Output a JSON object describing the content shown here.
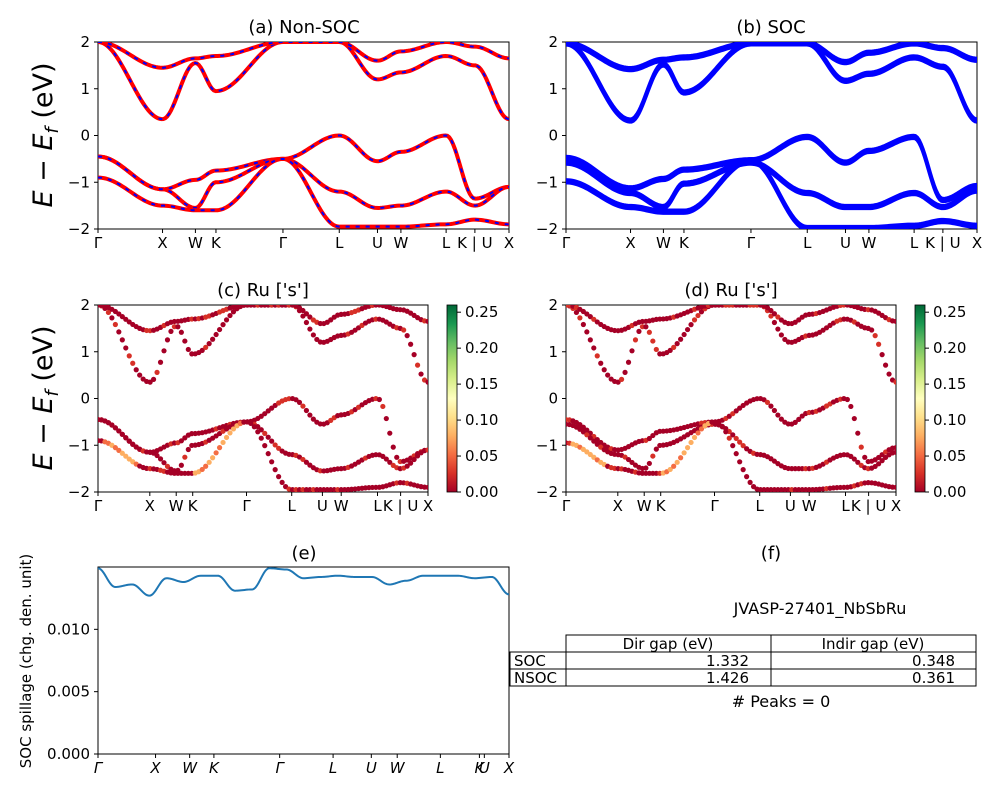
{
  "panels": {
    "a": {
      "title": "(a) Non-SOC"
    },
    "b": {
      "title": "(b) SOC"
    },
    "c": {
      "title": "(c)  Ru ['s']"
    },
    "d": {
      "title": "(d) Ru ['s']"
    },
    "e": {
      "title": "(e)"
    },
    "f": {
      "title": "(f)"
    }
  },
  "axes": {
    "ylabel_energy": "E − E_f (eV)",
    "ylabel_spillage": "SOC spillage (chg. den. unit)",
    "band_yticks": [
      "2",
      "1",
      "0",
      "−1",
      "−2"
    ],
    "band_ylim": [
      -2,
      2
    ],
    "kpath_labels": [
      "Γ",
      "X",
      "W",
      "K",
      "Γ",
      "L",
      "U",
      "W",
      "L",
      "K | U",
      "X"
    ],
    "kpath_labels_e": [
      "Γ",
      "X",
      "W",
      "K",
      "Γ",
      "L",
      "U",
      "W",
      "L",
      "K",
      "U",
      "X"
    ],
    "colorbar_ticks": [
      "0.25",
      "0.20",
      "0.15",
      "0.10",
      "0.05",
      "0.00"
    ],
    "spill_yticks": [
      "0.010",
      "0.005",
      "0.000"
    ]
  },
  "table": {
    "material": "JVASP-27401_NbSbRu",
    "headers": [
      "",
      "Dir gap (eV)",
      "Indir gap (eV)"
    ],
    "rows": [
      {
        "label": "SOC",
        "dir": "1.332",
        "indir": "0.348"
      },
      {
        "label": "NSOC",
        "dir": "1.426",
        "indir": "0.361"
      }
    ],
    "peaks": "# Peaks = 0"
  },
  "colors": {
    "nsoc_line": "#ff0000",
    "nsoc_dash": "#0000ff",
    "soc_line": "#0000ff",
    "spillage_line": "#1f77b4",
    "colormap": [
      "#a50026",
      "#d73027",
      "#f46d43",
      "#fdae61",
      "#fee08b",
      "#ffffbf",
      "#d9ef8b",
      "#a6d96a",
      "#66bd63",
      "#1a9850",
      "#006837"
    ]
  },
  "chart_data": [
    {
      "type": "line",
      "title": "(a) Non-SOC",
      "ylabel": "E − E_f (eV)",
      "x_ticks": [
        "Γ",
        "X",
        "W",
        "K",
        "Γ",
        "L",
        "U",
        "W",
        "L",
        "K | U",
        "X"
      ],
      "ylim": [
        -2,
        2
      ],
      "series": [
        {
          "values": [
            -0.45,
            -1.15,
            -0.95,
            -0.75,
            -0.5,
            0.0,
            -0.55,
            -0.35,
            0.0,
            -1.35,
            -1.1
          ]
        },
        {
          "values": [
            -0.45,
            -1.15,
            -1.55,
            -1.0,
            -0.5,
            -1.2,
            -1.55,
            -1.5,
            -1.2,
            -1.5,
            -1.1
          ]
        },
        {
          "values": [
            -0.9,
            -1.5,
            -1.6,
            -1.6,
            -0.5,
            -1.95,
            -1.95,
            -1.95,
            -1.9,
            -1.8,
            -1.9
          ]
        },
        {
          "values": [
            2.0,
            0.35,
            1.55,
            0.95,
            2.0,
            2.0,
            1.2,
            1.35,
            1.7,
            1.5,
            0.35
          ]
        },
        {
          "values": [
            2.0,
            1.45,
            1.65,
            1.7,
            2.0,
            2.0,
            1.6,
            1.8,
            2.0,
            1.9,
            1.65
          ]
        }
      ]
    },
    {
      "type": "line",
      "title": "(b) SOC",
      "x_ticks": [
        "Γ",
        "X",
        "W",
        "K",
        "Γ",
        "L",
        "U",
        "W",
        "L",
        "K | U",
        "X"
      ],
      "ylim": [
        -2,
        2
      ],
      "series": [
        {
          "values": [
            -0.45,
            -1.1,
            -0.9,
            -0.7,
            -0.5,
            0.0,
            -0.55,
            -0.3,
            0.0,
            -1.35,
            -1.05
          ]
        },
        {
          "values": [
            -0.55,
            -1.2,
            -1.5,
            -1.0,
            -0.55,
            -1.2,
            -1.5,
            -1.5,
            -1.2,
            -1.5,
            -1.15
          ]
        },
        {
          "values": [
            -0.95,
            -1.5,
            -1.6,
            -1.6,
            -0.5,
            -1.95,
            -1.95,
            -1.95,
            -1.9,
            -1.8,
            -1.9
          ]
        },
        {
          "values": [
            2.0,
            0.35,
            1.55,
            0.95,
            2.0,
            2.0,
            1.2,
            1.35,
            1.7,
            1.5,
            0.35
          ]
        },
        {
          "values": [
            2.0,
            1.45,
            1.65,
            1.7,
            2.0,
            2.0,
            1.6,
            1.8,
            2.0,
            1.9,
            1.65
          ]
        }
      ]
    },
    {
      "type": "scatter",
      "title": "(c)  Ru ['s']",
      "ylabel": "E − E_f (eV)",
      "colorbar_range": [
        0.0,
        0.26
      ],
      "ylim": [
        -2,
        2
      ]
    },
    {
      "type": "scatter",
      "title": "(d) Ru ['s']",
      "colorbar_range": [
        0.0,
        0.26
      ],
      "ylim": [
        -2,
        2
      ]
    },
    {
      "type": "line",
      "title": "(e)",
      "ylabel": "SOC spillage (chg. den. unit)",
      "x_ticks": [
        "Γ",
        "X",
        "W",
        "K",
        "Γ",
        "L",
        "U",
        "W",
        "L",
        "K",
        "U",
        "X"
      ],
      "ylim": [
        0.0,
        0.015
      ],
      "y_ticks": [
        0.0,
        0.005,
        0.01
      ],
      "series": [
        {
          "values": [
            0.0149,
            0.0134,
            0.0136,
            0.0127,
            0.0141,
            0.0138,
            0.0143,
            0.0143,
            0.0131,
            0.0132,
            0.0149,
            0.0148,
            0.0141,
            0.0142,
            0.0143,
            0.0142,
            0.0142,
            0.0136,
            0.0139,
            0.0143,
            0.0143,
            0.0143,
            0.0141,
            0.0142,
            0.0128
          ]
        }
      ]
    },
    {
      "type": "table",
      "title": "(f)",
      "material": "JVASP-27401_NbSbRu",
      "columns": [
        "Dir gap (eV)",
        "Indir gap (eV)"
      ],
      "rows": [
        [
          "SOC",
          1.332,
          0.348
        ],
        [
          "NSOC",
          1.426,
          0.361
        ]
      ],
      "peaks": 0
    }
  ]
}
